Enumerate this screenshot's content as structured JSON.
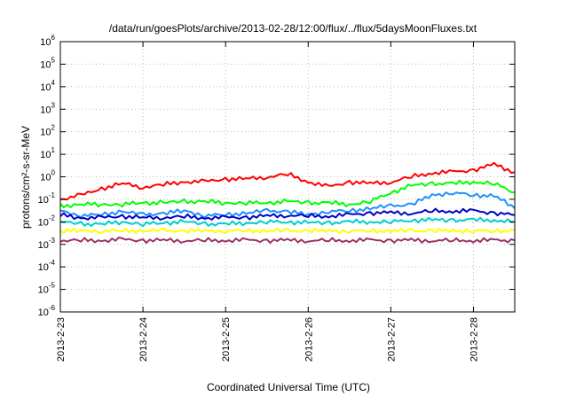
{
  "chart_data": {
    "type": "line",
    "title": "/data/run/goesPlots/archive/2013-02-28/12:00/flux/../flux/5daysMoonFluxes.txt",
    "xlabel": "Coordinated Universal Time (UTC)",
    "ylabel": "protons/cm²-s-sr-MeV",
    "yscale": "log",
    "ylim": [
      1e-06,
      1000000.0
    ],
    "xlim": [
      "2013-02-23",
      "2013-02-28 12:00"
    ],
    "grid": true,
    "legend": "none",
    "x_ticks": [
      "2013-2-23",
      "2013-2-24",
      "2013-2-25",
      "2013-2-26",
      "2013-2-27",
      "2013-2-28"
    ],
    "y_ticks": [
      {
        "base": "10",
        "exp": "-6",
        "value": 1e-06
      },
      {
        "base": "10",
        "exp": "-5",
        "value": 1e-05
      },
      {
        "base": "10",
        "exp": "-4",
        "value": 0.0001
      },
      {
        "base": "10",
        "exp": "-3",
        "value": 0.001
      },
      {
        "base": "10",
        "exp": "-2",
        "value": 0.01
      },
      {
        "base": "10",
        "exp": "-1",
        "value": 0.1
      },
      {
        "base": "10",
        "exp": "0",
        "value": 1
      },
      {
        "base": "10",
        "exp": "1",
        "value": 10
      },
      {
        "base": "10",
        "exp": "2",
        "value": 100
      },
      {
        "base": "10",
        "exp": "3",
        "value": 1000
      },
      {
        "base": "10",
        "exp": "4",
        "value": 10000
      },
      {
        "base": "10",
        "exp": "5",
        "value": 100000
      },
      {
        "base": "10",
        "exp": "6",
        "value": 1000000
      }
    ],
    "x": [
      "2013-02-23 00:00",
      "2013-02-23 06:00",
      "2013-02-23 12:00",
      "2013-02-23 18:00",
      "2013-02-24 00:00",
      "2013-02-24 06:00",
      "2013-02-24 12:00",
      "2013-02-24 18:00",
      "2013-02-25 00:00",
      "2013-02-25 06:00",
      "2013-02-25 12:00",
      "2013-02-25 18:00",
      "2013-02-26 00:00",
      "2013-02-26 06:00",
      "2013-02-26 12:00",
      "2013-02-26 18:00",
      "2013-02-27 00:00",
      "2013-02-27 06:00",
      "2013-02-27 12:00",
      "2013-02-27 18:00",
      "2013-02-28 00:00",
      "2013-02-28 06:00",
      "2013-02-28 12:00"
    ],
    "series": [
      {
        "color": "#ff0000",
        "values": [
          0.1,
          0.15,
          0.3,
          0.5,
          0.35,
          0.45,
          0.6,
          0.6,
          0.8,
          0.8,
          1.0,
          1.3,
          0.6,
          0.35,
          0.6,
          0.5,
          0.6,
          1.0,
          1.5,
          1.6,
          2.0,
          3.5,
          1.6
        ]
      },
      {
        "color": "#00ff00",
        "values": [
          0.05,
          0.06,
          0.06,
          0.06,
          0.07,
          0.07,
          0.08,
          0.08,
          0.07,
          0.07,
          0.07,
          0.08,
          0.07,
          0.07,
          0.06,
          0.08,
          0.2,
          0.4,
          0.5,
          0.5,
          0.6,
          0.5,
          0.2
        ]
      },
      {
        "color": "#1e90ff",
        "values": [
          0.03,
          0.02,
          0.02,
          0.03,
          0.02,
          0.025,
          0.03,
          0.02,
          0.02,
          0.025,
          0.03,
          0.03,
          0.02,
          0.03,
          0.03,
          0.04,
          0.05,
          0.06,
          0.15,
          0.2,
          0.15,
          0.15,
          0.04
        ]
      },
      {
        "color": "#0000cd",
        "values": [
          0.02,
          0.015,
          0.015,
          0.018,
          0.015,
          0.016,
          0.017,
          0.015,
          0.015,
          0.016,
          0.018,
          0.02,
          0.018,
          0.018,
          0.02,
          0.025,
          0.025,
          0.025,
          0.03,
          0.03,
          0.03,
          0.025,
          0.02
        ]
      },
      {
        "color": "#00ced1",
        "values": [
          0.01,
          0.008,
          0.008,
          0.01,
          0.008,
          0.009,
          0.01,
          0.008,
          0.008,
          0.009,
          0.01,
          0.01,
          0.009,
          0.009,
          0.01,
          0.01,
          0.01,
          0.012,
          0.012,
          0.012,
          0.012,
          0.012,
          0.01
        ]
      },
      {
        "color": "#ffff00",
        "values": [
          0.004,
          0.004,
          0.004,
          0.004,
          0.004,
          0.004,
          0.004,
          0.004,
          0.004,
          0.004,
          0.004,
          0.004,
          0.004,
          0.004,
          0.004,
          0.004,
          0.004,
          0.004,
          0.004,
          0.004,
          0.004,
          0.004,
          0.004
        ]
      },
      {
        "color": "#993366",
        "values": [
          0.0015,
          0.0015,
          0.0015,
          0.0016,
          0.0015,
          0.0015,
          0.0015,
          0.0015,
          0.0015,
          0.0015,
          0.0015,
          0.0015,
          0.0015,
          0.0015,
          0.0015,
          0.0015,
          0.0015,
          0.0015,
          0.0015,
          0.0015,
          0.0015,
          0.0015,
          0.0015
        ]
      }
    ]
  }
}
